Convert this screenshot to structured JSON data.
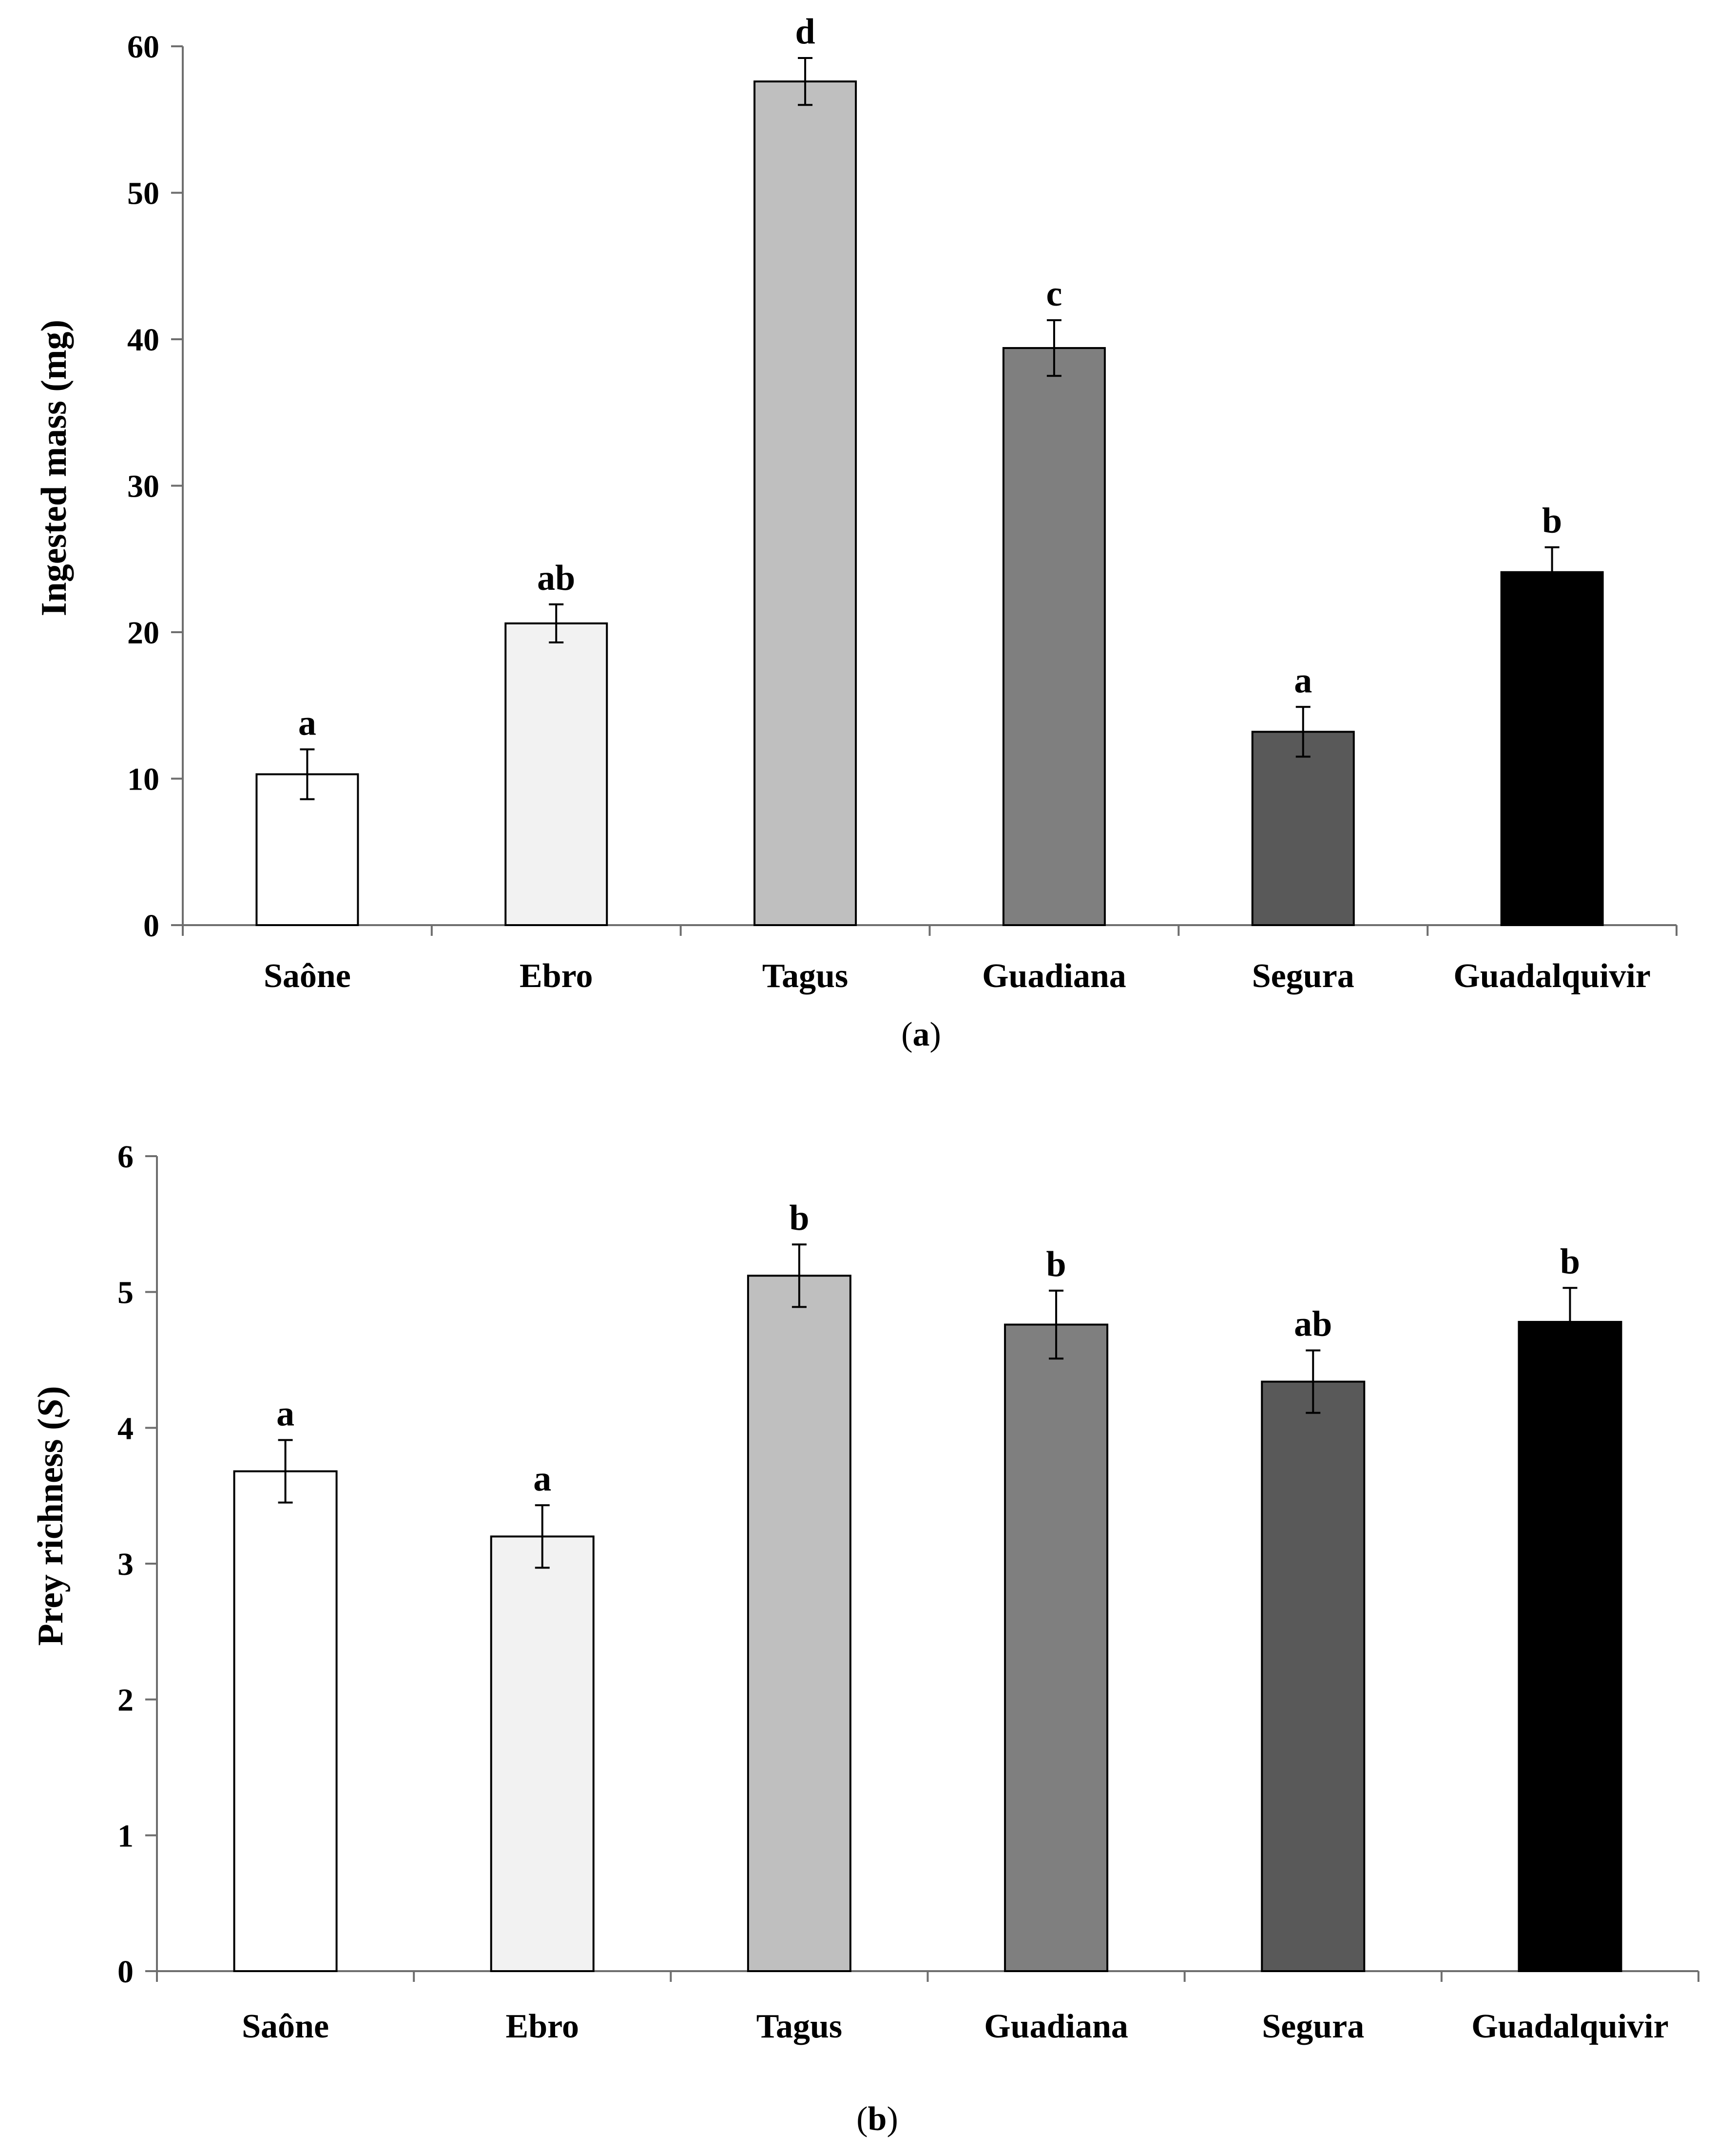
{
  "chart_data": [
    {
      "type": "bar",
      "panel_label": "(a)",
      "panel_letter": "a",
      "ylabel": "Ingested mass (mg)",
      "xlabel": "",
      "ylim": [
        0,
        60
      ],
      "yticks": [
        "0",
        "10",
        "20",
        "30",
        "40",
        "50",
        "60"
      ],
      "categories": [
        "Saône",
        "Ebro",
        "Tagus",
        "Guadiana",
        "Segura",
        "Guadalquivir"
      ],
      "values": [
        10.3,
        20.6,
        57.6,
        39.4,
        13.2,
        24.1
      ],
      "errors": [
        1.7,
        1.3,
        1.6,
        1.9,
        1.7,
        1.7
      ],
      "significance": [
        "a",
        "ab",
        "d",
        "c",
        "a",
        "b"
      ],
      "colors": [
        "#ffffff",
        "#f2f2f2",
        "#bfbfbf",
        "#7f7f7f",
        "#595959",
        "#000000"
      ]
    },
    {
      "type": "bar",
      "panel_label": "(b)",
      "panel_letter": "b",
      "ylabel": "Prey richness (S)",
      "ylabel_prefix": "Prey richness (",
      "ylabel_symbol": "S",
      "ylabel_suffix": ")",
      "xlabel": "",
      "ylim": [
        0,
        6
      ],
      "yticks": [
        "0",
        "1",
        "2",
        "3",
        "4",
        "5",
        "6"
      ],
      "categories": [
        "Saône",
        "Ebro",
        "Tagus",
        "Guadiana",
        "Segura",
        "Guadalquivir"
      ],
      "values": [
        3.68,
        3.2,
        5.12,
        4.76,
        4.34,
        4.78
      ],
      "errors": [
        0.23,
        0.23,
        0.23,
        0.25,
        0.23,
        0.25
      ],
      "significance": [
        "a",
        "a",
        "b",
        "b",
        "ab",
        "b"
      ],
      "colors": [
        "#ffffff",
        "#f2f2f2",
        "#bfbfbf",
        "#7f7f7f",
        "#595959",
        "#000000"
      ]
    }
  ]
}
